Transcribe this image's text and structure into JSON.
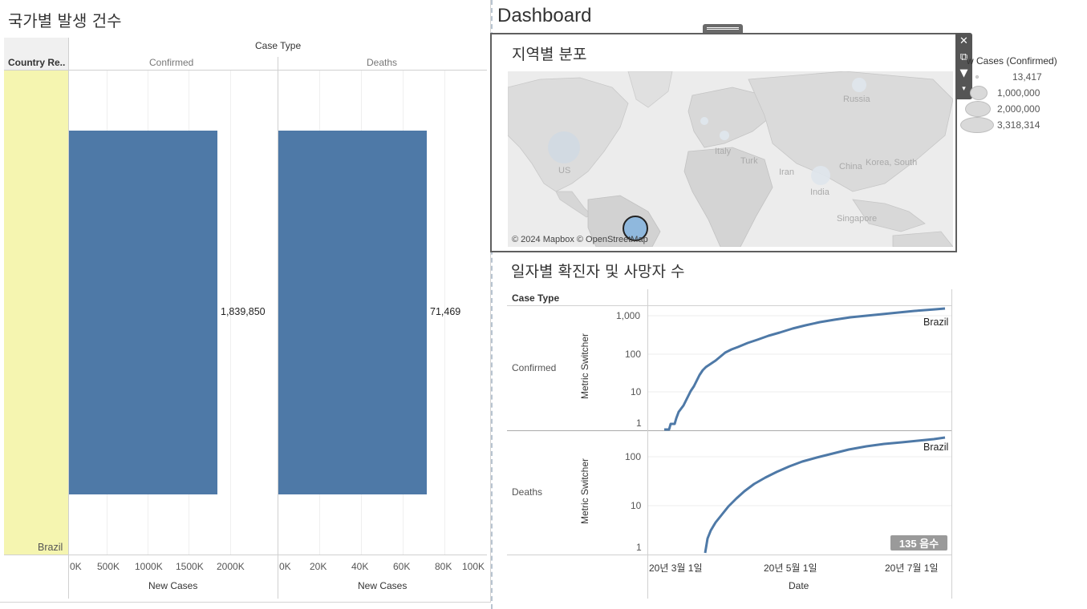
{
  "left": {
    "title": "국가별 발생 건수",
    "case_type_header": "Case Type",
    "country_header": "Country Re..",
    "row_label": "Brazil",
    "panels": [
      {
        "label": "Confirmed",
        "value_label": "1,839,850",
        "ticks": [
          "0K",
          "500K",
          "1000K",
          "1500K",
          "2000K"
        ],
        "axis_title": "New Cases"
      },
      {
        "label": "Deaths",
        "value_label": "71,469",
        "ticks": [
          "0K",
          "20K",
          "40K",
          "60K",
          "80K",
          "100K"
        ],
        "axis_title": "New Cases"
      }
    ]
  },
  "dashboard": {
    "title": "Dashboard"
  },
  "map": {
    "title": "지역별 분포",
    "attribution": "© 2024 Mapbox © OpenStreetMap",
    "labels": [
      "Russia",
      "Italy",
      "Turk",
      "Iran",
      "China",
      "Korea, South",
      "India",
      "Singapore",
      "US"
    ],
    "tools": {
      "close": "close-icon",
      "popout": "popout-icon",
      "filter": "filter-icon",
      "more": "more-icon"
    }
  },
  "legend": {
    "title": "w Cases (Confirmed)",
    "items": [
      "13,417",
      "1,000,000",
      "2,000,000",
      "3,318,314"
    ]
  },
  "line": {
    "title": "일자별 확진자 및 사망자 수",
    "case_type_header": "Case Type",
    "panels": [
      {
        "label": "Confirmed",
        "axis_title": "Metric Switcher",
        "ticks": [
          "1,000",
          "100",
          "10",
          "1"
        ],
        "series_label": "Brazil"
      },
      {
        "label": "Deaths",
        "axis_title": "Metric Switcher",
        "ticks": [
          "100",
          "10",
          "1"
        ],
        "series_label": "Brazil"
      }
    ],
    "x_ticks": [
      "20년 3월 1일",
      "20년 5월 1일",
      "20년 7월 1일"
    ],
    "x_title": "Date",
    "badge": "135 음수"
  },
  "colors": {
    "bar": "#4e79a7",
    "highlight": "#f5f5b0",
    "map_bubble": "#cfd9e3"
  }
}
